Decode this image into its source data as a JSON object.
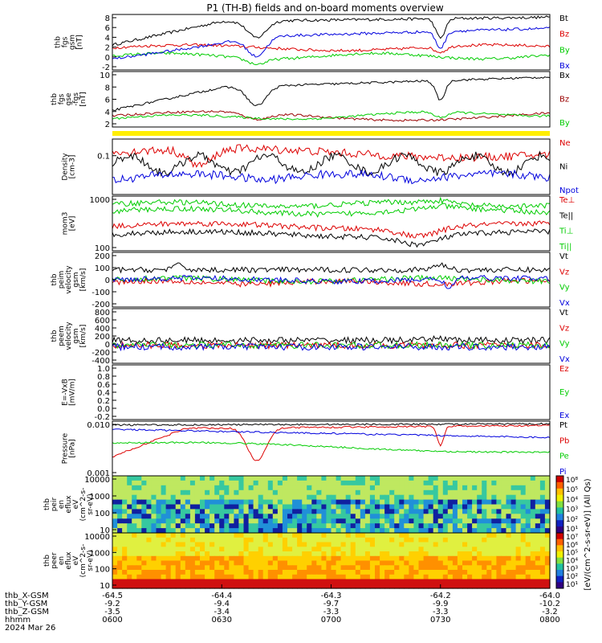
{
  "title": "P1 (TH-B) fields and on-board moments overview",
  "chart_data": {
    "type": "line",
    "panels": [
      {
        "id": "fgs_gsm",
        "ylabel": [
          "thb",
          "fgs",
          "gsm",
          "[nT]"
        ],
        "ylim": [
          -2,
          8
        ],
        "yticks": [
          "8",
          "6",
          "4",
          "2",
          "0",
          "-2"
        ],
        "legend": [
          {
            "name": "Bt",
            "color": "#000000"
          },
          {
            "name": "Bz",
            "color": "#dd0000"
          },
          {
            "name": "By",
            "color": "#00cc00"
          },
          {
            "name": "Bx",
            "color": "#0000dd"
          }
        ]
      },
      {
        "id": "fgs_gse",
        "ylabel": [
          "thb",
          "fgs",
          "gse",
          "-fgs",
          "[nT]"
        ],
        "ylim": [
          0,
          10
        ],
        "yticks": [
          "10",
          "8",
          "6",
          "4",
          "2"
        ],
        "legend": [
          {
            "name": "Bx",
            "color": "#000000"
          },
          {
            "name": "Bz",
            "color": "#990000"
          },
          {
            "name": "By",
            "color": "#00cc00"
          }
        ]
      },
      {
        "id": "density",
        "ylabel": [
          "Density",
          "[cm-3]"
        ],
        "yscale": "log",
        "yticks": [
          "0.1"
        ],
        "legend": [
          {
            "name": "Ne",
            "color": "#dd0000"
          },
          {
            "name": "Ni",
            "color": "#000000"
          },
          {
            "name": "Npot",
            "color": "#0000dd"
          }
        ]
      },
      {
        "id": "temperature",
        "ylabel": [
          "mom3",
          "[eV]"
        ],
        "yscale": "log",
        "yticks": [
          "1000",
          "100"
        ],
        "legend": [
          {
            "name": "Te⊥",
            "color": "#dd0000"
          },
          {
            "name": "Te||",
            "color": "#000000"
          },
          {
            "name": "Ti⊥",
            "color": "#00cc00"
          },
          {
            "name": "Ti||",
            "color": "#00cc00"
          }
        ]
      },
      {
        "id": "vi",
        "ylabel": [
          "thb",
          "peim",
          "velocity",
          "gsm",
          "[km/s]"
        ],
        "ylim": [
          -200,
          200
        ],
        "yticks": [
          "200",
          "100",
          "0",
          "-100",
          "-200"
        ],
        "legend": [
          {
            "name": "Vt",
            "color": "#000000"
          },
          {
            "name": "Vz",
            "color": "#dd0000"
          },
          {
            "name": "Vy",
            "color": "#00cc00"
          },
          {
            "name": "Vx",
            "color": "#0000dd"
          }
        ]
      },
      {
        "id": "ve",
        "ylabel": [
          "thb",
          "peem",
          "velocity",
          "gsm",
          "[km/s]"
        ],
        "ylim": [
          -400,
          800
        ],
        "yticks": [
          "800",
          "600",
          "400",
          "200",
          "0",
          "-200",
          "-400"
        ],
        "legend": [
          {
            "name": "Vt",
            "color": "#000000"
          },
          {
            "name": "Vz",
            "color": "#dd0000"
          },
          {
            "name": "Vy",
            "color": "#00cc00"
          },
          {
            "name": "Vx",
            "color": "#0000dd"
          }
        ]
      },
      {
        "id": "efield",
        "ylabel": [
          "E=-VxB",
          "[mV/m]"
        ],
        "ylim": [
          -0.2,
          1.0
        ],
        "yticks": [
          "1.0",
          "0.8",
          "0.6",
          "0.4",
          "0.2",
          "0.0",
          "-0.2"
        ],
        "legend": [
          {
            "name": "Ez",
            "color": "#dd0000"
          },
          {
            "name": "Ey",
            "color": "#00cc00"
          },
          {
            "name": "Ex",
            "color": "#0000dd"
          }
        ]
      },
      {
        "id": "pressure",
        "ylabel": [
          "Pressure",
          "[nPa]"
        ],
        "yscale": "log",
        "yticks": [
          "0.010",
          "0.001"
        ],
        "legend": [
          {
            "name": "Pt",
            "color": "#000000"
          },
          {
            "name": "Pb",
            "color": "#dd0000"
          },
          {
            "name": "Pe",
            "color": "#00cc00"
          },
          {
            "name": "Pi",
            "color": "#0000dd"
          }
        ]
      },
      {
        "id": "peir_spec",
        "ylabel": [
          "thb",
          "peir",
          "en",
          "eflux",
          "eV",
          "(cm^2-s-",
          "sr-eV)"
        ],
        "yscale": "log",
        "yticks": [
          "10000",
          "1000",
          "100",
          "10"
        ]
      },
      {
        "id": "peer_spec",
        "ylabel": [
          "thb",
          "peer",
          "en",
          "eflux",
          "eV",
          "(cm^2-s-",
          "sr-eV)"
        ],
        "yscale": "log",
        "yticks": [
          "10000",
          "1000",
          "100",
          "10"
        ]
      }
    ],
    "colorbar": {
      "label": "[eV/(cm^2-s-sr-eV)] (All Qs)",
      "upper_ticks": [
        "10⁸",
        "10⁵",
        "10⁴",
        "10³",
        "10²",
        "10¹"
      ],
      "lower_ticks": [
        "10⁷",
        "10⁶",
        "10⁵",
        "10⁴",
        "10³",
        "10²",
        "10¹"
      ]
    },
    "xaxis": {
      "rows": [
        {
          "label": "thb_X-GSM",
          "values": [
            "-64.5",
            "-64.4",
            "-64.3",
            "-64.2",
            "-64.0"
          ]
        },
        {
          "label": "thb_Y-GSM",
          "values": [
            "-9.2",
            "-9.4",
            "-9.7",
            "-9.9",
            "-10.2"
          ]
        },
        {
          "label": "thb_Z-GSM",
          "values": [
            "-3.5",
            "-3.4",
            "-3.3",
            "-3.3",
            "-3.2"
          ]
        },
        {
          "label": "hhmm",
          "values": [
            "0600",
            "0630",
            "0700",
            "0730",
            "0800"
          ]
        }
      ],
      "date": "2024 Mar 26"
    }
  }
}
